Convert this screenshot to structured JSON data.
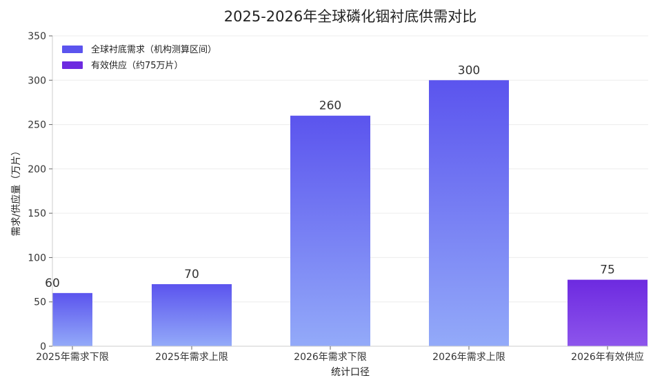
{
  "chart_data": {
    "type": "bar",
    "title": "2025-2026年全球磷化铟衬底供需对比",
    "xlabel": "统计口径",
    "ylabel": "需求/供应量（万片）",
    "ylim": [
      0,
      350
    ],
    "yticks": [
      0,
      50,
      100,
      150,
      200,
      250,
      300,
      350
    ],
    "categories": [
      "2025年需求下限",
      "2025年需求上限",
      "2026年需求下限",
      "2026年需求上限",
      "2026年有效供应"
    ],
    "values": [
      60,
      70,
      260,
      300,
      75
    ],
    "bar_series": [
      "demand",
      "demand",
      "demand",
      "demand",
      "supply"
    ],
    "series": [
      {
        "name": "全球衬底需求（机构测算区间）",
        "key": "demand",
        "color": "#5b54ee",
        "color_light": "#93aaf9"
      },
      {
        "name": "有效供应（约75万片）",
        "key": "supply",
        "color": "#6d2ae0",
        "color_light": "#8d55ec"
      }
    ],
    "grid": true,
    "legend_position": "top-left"
  }
}
